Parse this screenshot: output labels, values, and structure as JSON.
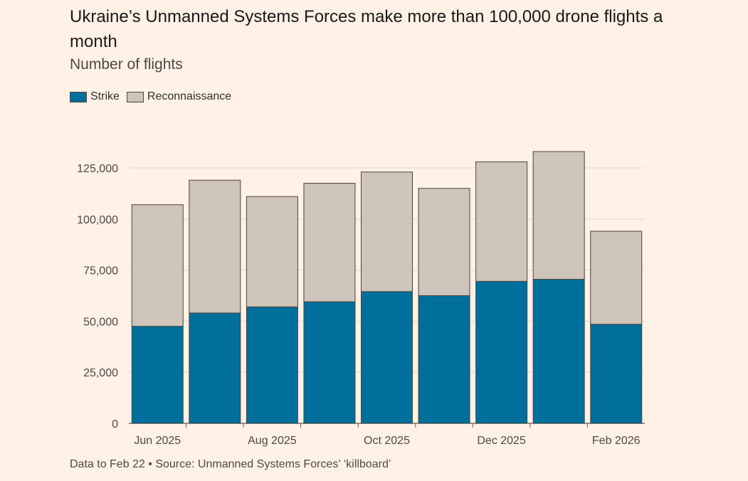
{
  "header": {
    "title": "Ukraine’s Unmanned Systems Forces make more than 100,000 drone flights a month",
    "subtitle": "Number of flights"
  },
  "legend": {
    "items": [
      {
        "label": "Strike",
        "color": "#006f9b"
      },
      {
        "label": "Reconnaissance",
        "color": "#cec4ba"
      }
    ]
  },
  "footer": {
    "source": "Data to Feb 22 • Source: Unmanned Systems Forces’ ‘killboard’"
  },
  "chart_data": {
    "type": "bar",
    "stacked": true,
    "title": "Ukraine’s Unmanned Systems Forces make more than 100,000 drone flights a month",
    "subtitle": "Number of flights",
    "categories": [
      "Jun 2025",
      "Jul 2025",
      "Aug 2025",
      "Sep 2025",
      "Oct 2025",
      "Nov 2025",
      "Dec 2025",
      "Jan 2026",
      "Feb 2026"
    ],
    "x_tick_labels": [
      "Jun 2025",
      "",
      "Aug 2025",
      "",
      "Oct 2025",
      "",
      "Dec 2025",
      "",
      "Feb 2026"
    ],
    "series": [
      {
        "name": "Strike",
        "color": "#006f9b",
        "values": [
          47500,
          54000,
          57000,
          59500,
          64500,
          62500,
          69500,
          70500,
          48500
        ]
      },
      {
        "name": "Reconnaissance",
        "color": "#cec4ba",
        "values": [
          59500,
          65000,
          54000,
          58000,
          58500,
          52500,
          58500,
          62500,
          45500
        ]
      }
    ],
    "y_ticks": [
      0,
      25000,
      50000,
      75000,
      100000,
      125000
    ],
    "y_tick_labels": [
      "0",
      "25,000",
      "50,000",
      "75,000",
      "100,000",
      "125,000"
    ],
    "ylim": [
      0,
      140000
    ],
    "grid": true,
    "legend_position": "top-left",
    "xlabel": "",
    "ylabel": ""
  }
}
